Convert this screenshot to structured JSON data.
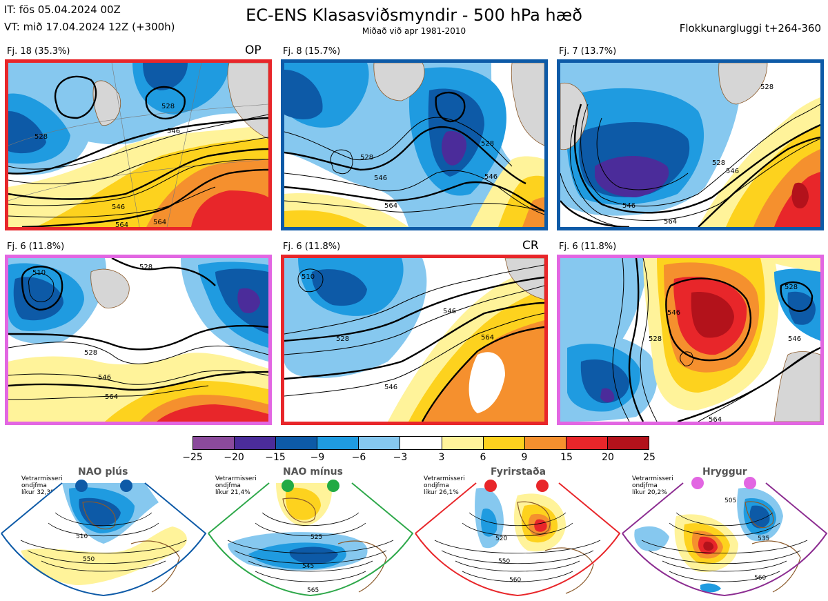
{
  "header": {
    "it": "IT: fös 05.04.2024 00Z",
    "vt": "VT: mið 17.04.2024 12Z  (+300h)",
    "title": "EC-ENS Klasasviðsmyndir - 500 hPa hæð",
    "subtitle": "Miðað við apr 1981-2010",
    "window": "Flokkunargluggi t+264-360"
  },
  "panels": [
    {
      "label": "Fj. 18 (35.3%)",
      "tag": "OP",
      "border": "#e8262a",
      "contours": [
        "528",
        "546",
        "546",
        "564",
        "564",
        "528"
      ]
    },
    {
      "label": "Fj. 8 (15.7%)",
      "tag": "",
      "border": "#0d5aa7",
      "contours": [
        "528",
        "546",
        "564",
        "546",
        "528"
      ]
    },
    {
      "label": "Fj. 7 (13.7%)",
      "tag": "",
      "border": "#0d5aa7",
      "contours": [
        "528",
        "546",
        "564",
        "546",
        "528"
      ]
    },
    {
      "label": "Fj. 6 (11.8%)",
      "tag": "",
      "border": "#e266e2",
      "contours": [
        "528",
        "546",
        "564",
        "510",
        "528"
      ]
    },
    {
      "label": "Fj. 6 (11.8%)",
      "tag": "CR",
      "border": "#e8262a",
      "contours": [
        "528",
        "546",
        "564",
        "510",
        "546"
      ]
    },
    {
      "label": "Fj. 6 (11.8%)",
      "tag": "",
      "border": "#e266e2",
      "contours": [
        "528",
        "546",
        "564",
        "546",
        "528"
      ]
    }
  ],
  "colorbar": {
    "colors": [
      "#8b4a9c",
      "#4b2c9a",
      "#0d5aa7",
      "#1f9be0",
      "#86c8ef",
      "#ffffff",
      "#fff39a",
      "#fdd21e",
      "#f5902e",
      "#e8262a",
      "#b3121b"
    ],
    "labels": [
      "−25",
      "−20",
      "−15",
      "−9",
      "−6",
      "−3",
      "3",
      "6",
      "9",
      "15",
      "20",
      "25"
    ]
  },
  "regimes": [
    {
      "title": "NAO plús",
      "note": "Vetrarmisseri\nondjfma\nlíkur 32,3%",
      "dot_color": "#0d5aa7",
      "frame_color": "#0d5aa7",
      "contours": [
        "510",
        "550"
      ]
    },
    {
      "title": "NAO mínus",
      "note": "Vetrarmisseri\nondjfma\nlíkur 21,4%",
      "dot_color": "#22aa44",
      "frame_color": "#2ea84a",
      "contours": [
        "525",
        "545",
        "565"
      ]
    },
    {
      "title": "Fyrirstaða",
      "note": "Vetrarmisseri\nondjfma\nlíkur 26,1%",
      "dot_color": "#e8262a",
      "frame_color": "#e8262a",
      "contours": [
        "520",
        "550",
        "560"
      ]
    },
    {
      "title": "Hryggur",
      "note": "Vetrarmisseri\nondjfma\nlíkur 20,2%",
      "dot_color": "#e266e2",
      "frame_color": "#8c2d91",
      "contours": [
        "505",
        "535",
        "560"
      ]
    }
  ]
}
